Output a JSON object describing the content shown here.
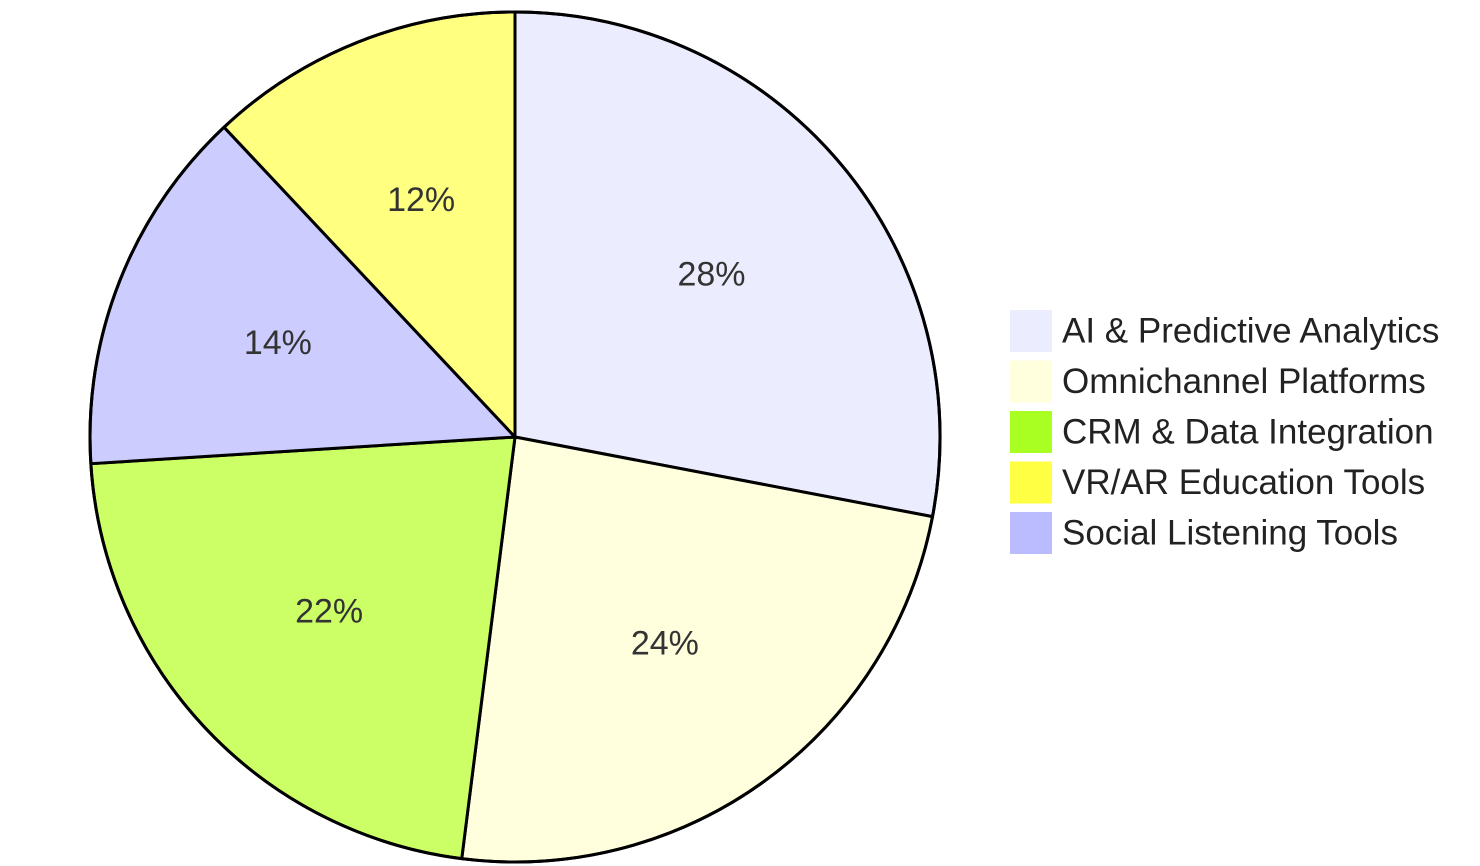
{
  "chart_data": {
    "type": "pie",
    "title": "",
    "slices": [
      {
        "label": "AI & Predictive Analytics",
        "value": 28,
        "display": "28%",
        "color": "#ECECFF"
      },
      {
        "label": "Omnichannel Platforms",
        "value": 24,
        "display": "24%",
        "color": "#FFFFDE"
      },
      {
        "label": "CRM & Data Integration",
        "value": 22,
        "display": "22%",
        "color": "#CCFF66"
      },
      {
        "label": "Social Listening Tools",
        "value": 14,
        "display": "14%",
        "color": "#CCCCFF"
      },
      {
        "label": "VR/AR Education Tools",
        "value": 12,
        "display": "12%",
        "color": "#FFFF80"
      }
    ],
    "legend": {
      "position": "right",
      "entries": [
        {
          "label": "AI & Predictive Analytics",
          "color": "#ECECFF"
        },
        {
          "label": "Omnichannel Platforms",
          "color": "#FFFFDE"
        },
        {
          "label": "CRM & Data Integration",
          "color": "#AAFF22"
        },
        {
          "label": "VR/AR Education Tools",
          "color": "#FFFF44"
        },
        {
          "label": "Social Listening Tools",
          "color": "#BBBBFF"
        }
      ]
    },
    "outline_color": "#000000"
  }
}
